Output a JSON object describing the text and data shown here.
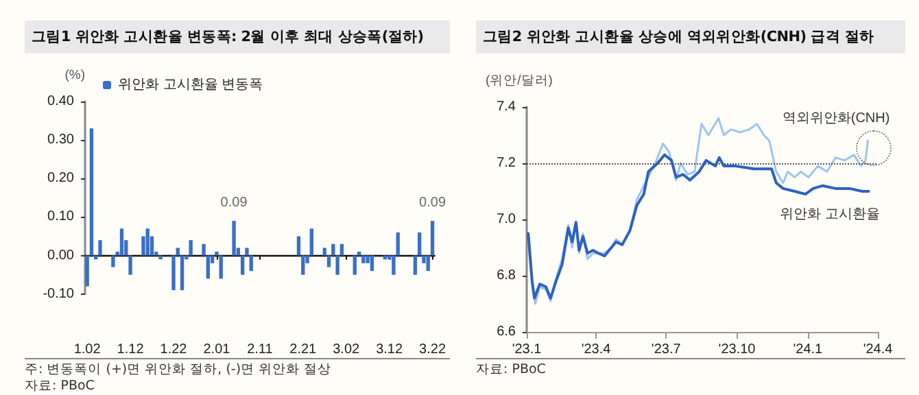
{
  "chart_data": [
    {
      "type": "bar",
      "title": "그림1 위안화 고시환율 변동폭: 2월 이후 최대 상승폭(절하)",
      "ylabel": "(%)",
      "legend": "top left",
      "categories": [
        "1.02",
        null,
        null,
        null,
        null,
        null,
        null,
        null,
        null,
        null,
        "1.12",
        null,
        null,
        null,
        null,
        null,
        null,
        null,
        null,
        null,
        "1.22",
        null,
        null,
        null,
        null,
        null,
        null,
        null,
        null,
        null,
        "2.01",
        null,
        null,
        null,
        null,
        null,
        null,
        null,
        null,
        null,
        "2.11",
        null,
        null,
        null,
        null,
        null,
        null,
        null,
        null,
        null,
        "2.21",
        null,
        null,
        null,
        null,
        null,
        null,
        null,
        null,
        null,
        "3.02",
        null,
        null,
        null,
        null,
        null,
        null,
        null,
        null,
        null,
        "3.12",
        null,
        null,
        null,
        null,
        null,
        null,
        null,
        null,
        null,
        "3.22"
      ],
      "series": [
        {
          "name": "위안화 고시환율 변동폭",
          "color": "#3a6fc6",
          "values": [
            -0.08,
            0.33,
            -0.01,
            0.04,
            null,
            null,
            -0.03,
            0.01,
            0.07,
            0.04,
            -0.05,
            null,
            null,
            0.05,
            0.07,
            0.05,
            0.01,
            -0.01,
            null,
            null,
            -0.09,
            0.02,
            -0.09,
            -0.01,
            0.04,
            null,
            null,
            0.03,
            -0.06,
            -0.02,
            0.01,
            -0.06,
            null,
            null,
            0.09,
            0.02,
            -0.05,
            0.02,
            -0.04,
            null,
            null,
            null,
            null,
            null,
            null,
            null,
            null,
            null,
            null,
            0.05,
            -0.05,
            -0.02,
            0.07,
            null,
            null,
            0.02,
            -0.03,
            0.03,
            -0.05,
            0.03,
            null,
            null,
            -0.05,
            0.01,
            -0.02,
            -0.02,
            -0.04,
            null,
            null,
            -0.01,
            -0.01,
            -0.05,
            0.06,
            null,
            null,
            null,
            -0.05,
            0.06,
            -0.02,
            -0.04,
            0.09
          ],
          "value_labels": [
            null,
            null,
            null,
            null,
            null,
            null,
            null,
            null,
            null,
            null,
            null,
            null,
            null,
            null,
            null,
            null,
            null,
            null,
            null,
            null,
            null,
            null,
            null,
            null,
            null,
            null,
            null,
            null,
            null,
            null,
            null,
            null,
            null,
            null,
            "0.09",
            null,
            null,
            null,
            null,
            null,
            null,
            null,
            null,
            null,
            null,
            null,
            null,
            null,
            null,
            null,
            null,
            null,
            null,
            null,
            null,
            null,
            null,
            null,
            null,
            null,
            null,
            null,
            null,
            null,
            null,
            null,
            null,
            null,
            null,
            null,
            null,
            null,
            null,
            null,
            null,
            null,
            null,
            null,
            null,
            null,
            "0.09"
          ]
        }
      ],
      "ylim": [
        -0.1,
        0.4
      ],
      "yticks": [
        {
          "value": -0.1,
          "label": "-0.10"
        },
        {
          "value": 0,
          "label": "0.00"
        },
        {
          "value": 0.1,
          "label": "0.10"
        },
        {
          "value": 0.2,
          "label": "0.20"
        },
        {
          "value": 0.3,
          "label": "0.30"
        },
        {
          "value": 0.4,
          "label": "0.40"
        }
      ],
      "annotations": [
        "주: 변동폭이 (+)면 위안화 절하, (-)면 위안화 절상",
        "자료: PBoC"
      ]
    },
    {
      "type": "line",
      "title": "그림2 위안화 고시환율 상승에 역외위안화(CNH) 급격 절하",
      "ylabel": "(위안/달러)",
      "series": [
        {
          "name": "역외위안화(CNH)",
          "color": "#9ec4ee",
          "x": [
            "2023-01-03",
            "2023-01-08",
            "2023-01-12",
            "2023-01-18",
            "2023-01-26",
            "2023-02-01",
            "2023-02-08",
            "2023-02-16",
            "2023-02-24",
            "2023-03-01",
            "2023-03-06",
            "2023-03-10",
            "2023-03-15",
            "2023-03-21",
            "2023-03-28",
            "2023-04-04",
            "2023-04-12",
            "2023-04-21",
            "2023-04-27",
            "2023-05-05",
            "2023-05-15",
            "2023-05-24",
            "2023-06-02",
            "2023-06-17",
            "2023-06-27",
            "2023-07-05",
            "2023-07-14",
            "2023-07-20",
            "2023-07-29",
            "2023-08-07",
            "2023-08-16",
            "2023-08-25",
            "2023-09-07",
            "2023-09-14",
            "2023-09-23",
            "2023-10-05",
            "2023-10-17",
            "2023-10-27",
            "2023-11-05",
            "2023-11-12",
            "2023-11-21",
            "2023-11-30",
            "2023-12-06",
            "2023-12-15",
            "2023-12-23",
            "2024-01-02",
            "2024-01-14",
            "2024-01-26",
            "2024-02-06",
            "2024-02-18",
            "2024-03-01",
            "2024-03-10",
            "2024-03-16",
            "2024-03-19"
          ],
          "values": [
            6.92,
            6.78,
            6.7,
            6.76,
            6.75,
            6.71,
            6.79,
            6.86,
            6.98,
            6.9,
            6.99,
            6.88,
            6.95,
            6.86,
            6.88,
            6.88,
            6.88,
            6.9,
            6.93,
            6.91,
            6.96,
            7.07,
            7.12,
            7.2,
            7.27,
            7.24,
            7.14,
            7.2,
            7.16,
            7.17,
            7.34,
            7.3,
            7.36,
            7.3,
            7.32,
            7.31,
            7.32,
            7.34,
            7.3,
            7.28,
            7.17,
            7.13,
            7.17,
            7.15,
            7.17,
            7.15,
            7.19,
            7.17,
            7.22,
            7.21,
            7.23,
            7.19,
            7.21,
            7.28
          ]
        },
        {
          "name": "위안화 고시환율",
          "color": "#2c62c0",
          "x": [
            "2023-01-03",
            "2023-01-08",
            "2023-01-11",
            "2023-01-18",
            "2023-01-26",
            "2023-02-01",
            "2023-02-08",
            "2023-02-16",
            "2023-02-24",
            "2023-03-01",
            "2023-03-06",
            "2023-03-10",
            "2023-03-15",
            "2023-03-21",
            "2023-03-28",
            "2023-04-04",
            "2023-04-12",
            "2023-04-21",
            "2023-04-27",
            "2023-05-05",
            "2023-05-15",
            "2023-05-24",
            "2023-06-02",
            "2023-06-08",
            "2023-06-20",
            "2023-06-29",
            "2023-07-08",
            "2023-07-14",
            "2023-07-23",
            "2023-08-01",
            "2023-08-13",
            "2023-08-22",
            "2023-09-03",
            "2023-09-08",
            "2023-09-14",
            "2023-09-29",
            "2023-10-23",
            "2023-11-15",
            "2023-11-21",
            "2023-11-30",
            "2023-12-15",
            "2023-12-29",
            "2024-01-08",
            "2024-01-20",
            "2024-02-06",
            "2024-02-24",
            "2024-03-12",
            "2024-03-20"
          ],
          "values": [
            6.95,
            6.78,
            6.72,
            6.77,
            6.76,
            6.72,
            6.78,
            6.84,
            6.97,
            6.92,
            6.99,
            6.89,
            6.94,
            6.88,
            6.89,
            6.88,
            6.87,
            6.9,
            6.92,
            6.91,
            6.96,
            7.05,
            7.09,
            7.17,
            7.2,
            7.23,
            7.21,
            7.15,
            7.16,
            7.14,
            7.17,
            7.21,
            7.19,
            7.22,
            7.19,
            7.19,
            7.18,
            7.18,
            7.13,
            7.11,
            7.1,
            7.09,
            7.11,
            7.12,
            7.11,
            7.11,
            7.1,
            7.1
          ]
        }
      ],
      "xlim": [
        "2023-01",
        "2024-04"
      ],
      "xticks": [
        {
          "value": "2023-01",
          "label": "'23.1"
        },
        {
          "value": "2023-04",
          "label": "'23.4"
        },
        {
          "value": "2023-07",
          "label": "'23.7"
        },
        {
          "value": "2023-10",
          "label": "'23.10"
        },
        {
          "value": "2024-01",
          "label": "'24.1"
        },
        {
          "value": "2024-04",
          "label": "'24.4"
        }
      ],
      "ylim": [
        6.6,
        7.4
      ],
      "yticks": [
        6.6,
        6.8,
        {
          "value": 7,
          "label": "7.0"
        },
        7.2,
        7.4
      ],
      "ref_lines": [
        {
          "axis": "y",
          "value": 7.2,
          "color": "#555555",
          "line_style": "dotted"
        }
      ],
      "annotations": [
        "자료: PBoC"
      ]
    }
  ]
}
